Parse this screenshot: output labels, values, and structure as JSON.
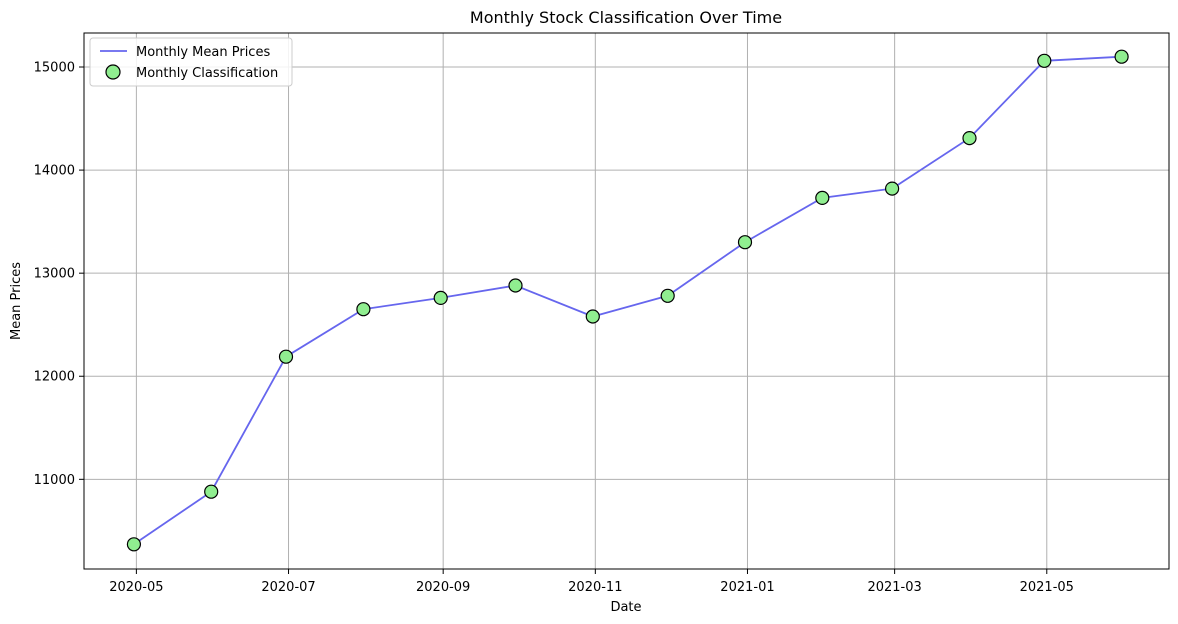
{
  "chart_data": {
    "type": "line",
    "title": "Monthly Stock Classification Over Time",
    "xlabel": "Date",
    "ylabel": "Mean Prices",
    "x": [
      "2020-04-30",
      "2020-05-31",
      "2020-06-30",
      "2020-07-31",
      "2020-08-31",
      "2020-09-30",
      "2020-10-31",
      "2020-11-30",
      "2020-12-31",
      "2021-01-31",
      "2021-02-28",
      "2021-03-31",
      "2021-04-30",
      "2021-05-31"
    ],
    "x_ticks": [
      "2020-05",
      "2020-07",
      "2020-09",
      "2020-11",
      "2021-01",
      "2021-03",
      "2021-05"
    ],
    "x_tick_dates": [
      "2020-05-01",
      "2020-07-01",
      "2020-09-01",
      "2020-11-01",
      "2021-01-01",
      "2021-03-01",
      "2021-05-01"
    ],
    "xlim": [
      "2020-04-10",
      "2021-06-19"
    ],
    "y_ticks": [
      11000,
      12000,
      13000,
      14000,
      15000
    ],
    "ylim": [
      10130,
      15330
    ],
    "grid": true,
    "legend_position": "top-left",
    "series": [
      {
        "name": "Monthly Mean Prices",
        "kind": "line",
        "color": "#6666ee",
        "values": [
          10370,
          10880,
          12190,
          12650,
          12760,
          12880,
          12580,
          12780,
          13300,
          13730,
          13820,
          14310,
          15060,
          15100
        ]
      },
      {
        "name": "Monthly Classification",
        "kind": "scatter",
        "color": "#90ee90",
        "edge_color": "#000000",
        "values": [
          10370,
          10880,
          12190,
          12650,
          12760,
          12880,
          12580,
          12780,
          13300,
          13730,
          13820,
          14310,
          15060,
          15100
        ]
      }
    ]
  }
}
